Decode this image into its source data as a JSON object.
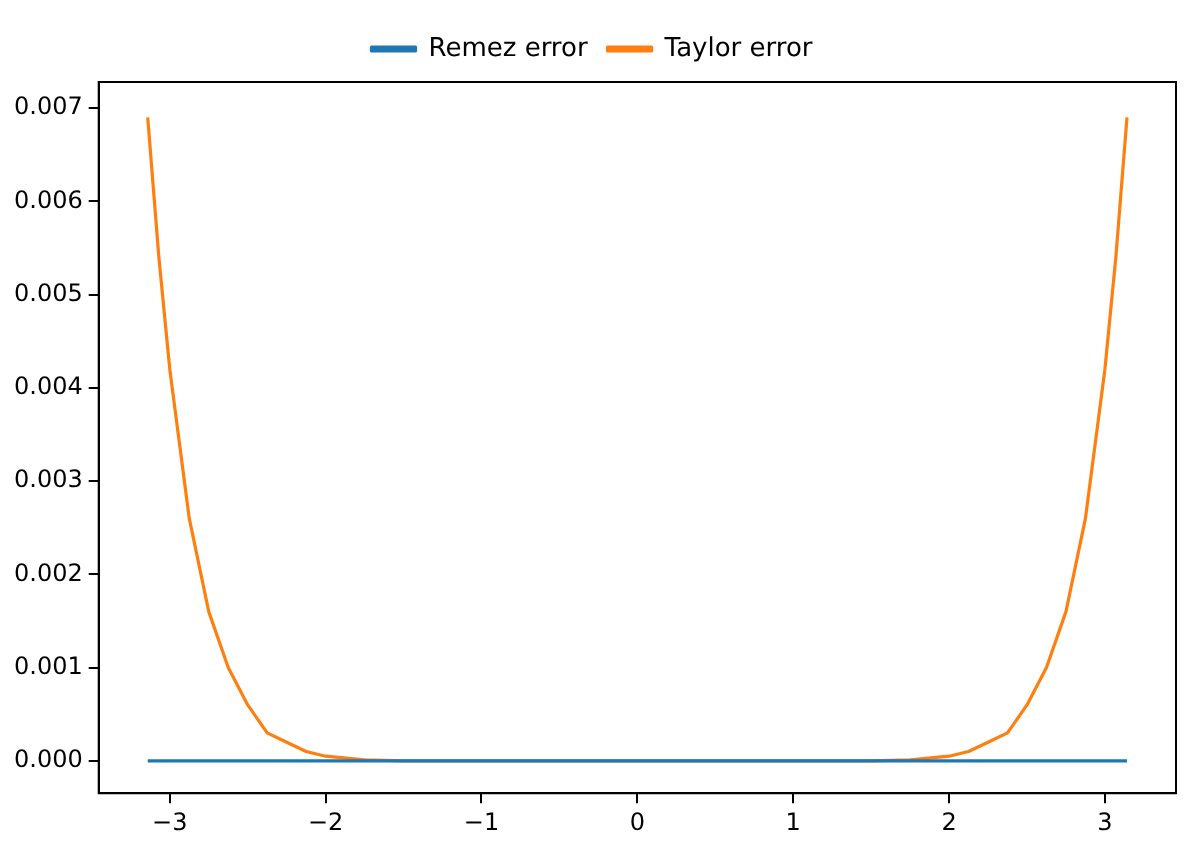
{
  "chart_data": {
    "type": "line",
    "x": [
      -3.1416,
      -3.07,
      -3,
      -2.875,
      -2.75,
      -2.625,
      -2.5,
      -2.375,
      -2.25,
      -2.125,
      -2,
      -1.75,
      -1.5,
      -1,
      0,
      1,
      1.5,
      1.75,
      2,
      2.125,
      2.25,
      2.375,
      2.5,
      2.625,
      2.75,
      2.875,
      3,
      3.07,
      3.1416
    ],
    "series": [
      {
        "name": "Remez error",
        "color": "#1f77b4",
        "values": [
          0,
          0,
          0,
          0,
          0,
          0,
          0,
          0,
          0,
          0,
          0,
          0,
          0,
          0,
          0,
          0,
          0,
          0,
          0,
          0,
          0,
          0,
          0,
          0,
          0,
          0,
          0,
          0,
          0
        ]
      },
      {
        "name": "Taylor error",
        "color": "#ff7f0e",
        "values": [
          0.0069,
          0.0054,
          0.0042,
          0.0026,
          0.0016,
          0.001,
          0.0006,
          0.0003,
          0.0002,
          0.0001,
          5e-05,
          1e-05,
          0,
          0,
          0,
          0,
          0,
          1e-05,
          5e-05,
          0.0001,
          0.0002,
          0.0003,
          0.0006,
          0.001,
          0.0016,
          0.0026,
          0.0042,
          0.0054,
          0.0069
        ]
      }
    ],
    "xlim": [
      -3.456,
      3.456
    ],
    "ylim": [
      -0.000347,
      0.00728
    ],
    "xticks": [
      {
        "value": -3,
        "label": "−3"
      },
      {
        "value": -2,
        "label": "−2"
      },
      {
        "value": -1,
        "label": "−1"
      },
      0,
      1,
      2,
      3
    ],
    "yticks": [
      {
        "value": 0,
        "label": "0.000"
      },
      {
        "value": 0.001,
        "label": "0.001"
      },
      {
        "value": 0.002,
        "label": "0.002"
      },
      {
        "value": 0.003,
        "label": "0.003"
      },
      {
        "value": 0.004,
        "label": "0.004"
      },
      {
        "value": 0.005,
        "label": "0.005"
      },
      {
        "value": 0.006,
        "label": "0.006"
      },
      {
        "value": 0.007,
        "label": "0.007"
      }
    ],
    "grid": false,
    "legend": "top",
    "marker": "none",
    "line_style": "solid"
  }
}
